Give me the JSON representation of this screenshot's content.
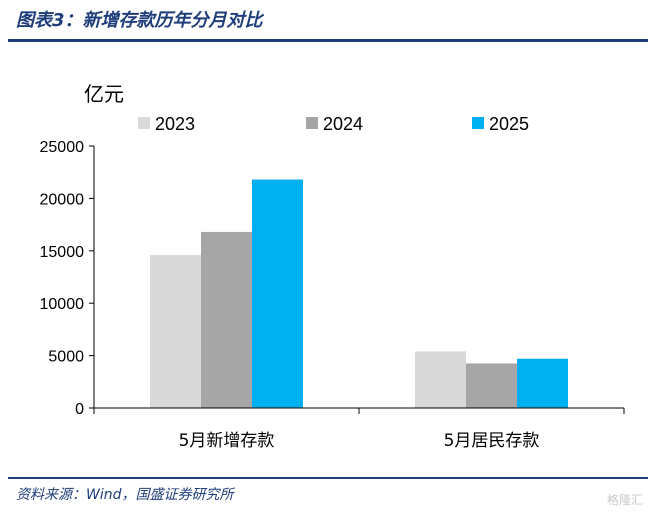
{
  "header": {
    "title": "图表3：新增存款历年分月对比"
  },
  "footer": {
    "source": "资料来源：Wind，国盛证券研究所",
    "watermark": "格隆汇"
  },
  "chart_data": {
    "type": "bar",
    "unit_label": "亿元",
    "categories": [
      "5月新增存款",
      "5月居民存款"
    ],
    "series": [
      {
        "name": "2023",
        "color": "#d9d9d9",
        "values": [
          14600,
          5400
        ]
      },
      {
        "name": "2024",
        "color": "#a6a6a6",
        "values": [
          16800,
          4250
        ]
      },
      {
        "name": "2025",
        "color": "#00b0f0",
        "values": [
          21800,
          4700
        ]
      }
    ],
    "ylim": [
      0,
      25000
    ],
    "yticks": [
      0,
      5000,
      10000,
      15000,
      20000,
      25000
    ],
    "legend": "top",
    "grid": false
  }
}
